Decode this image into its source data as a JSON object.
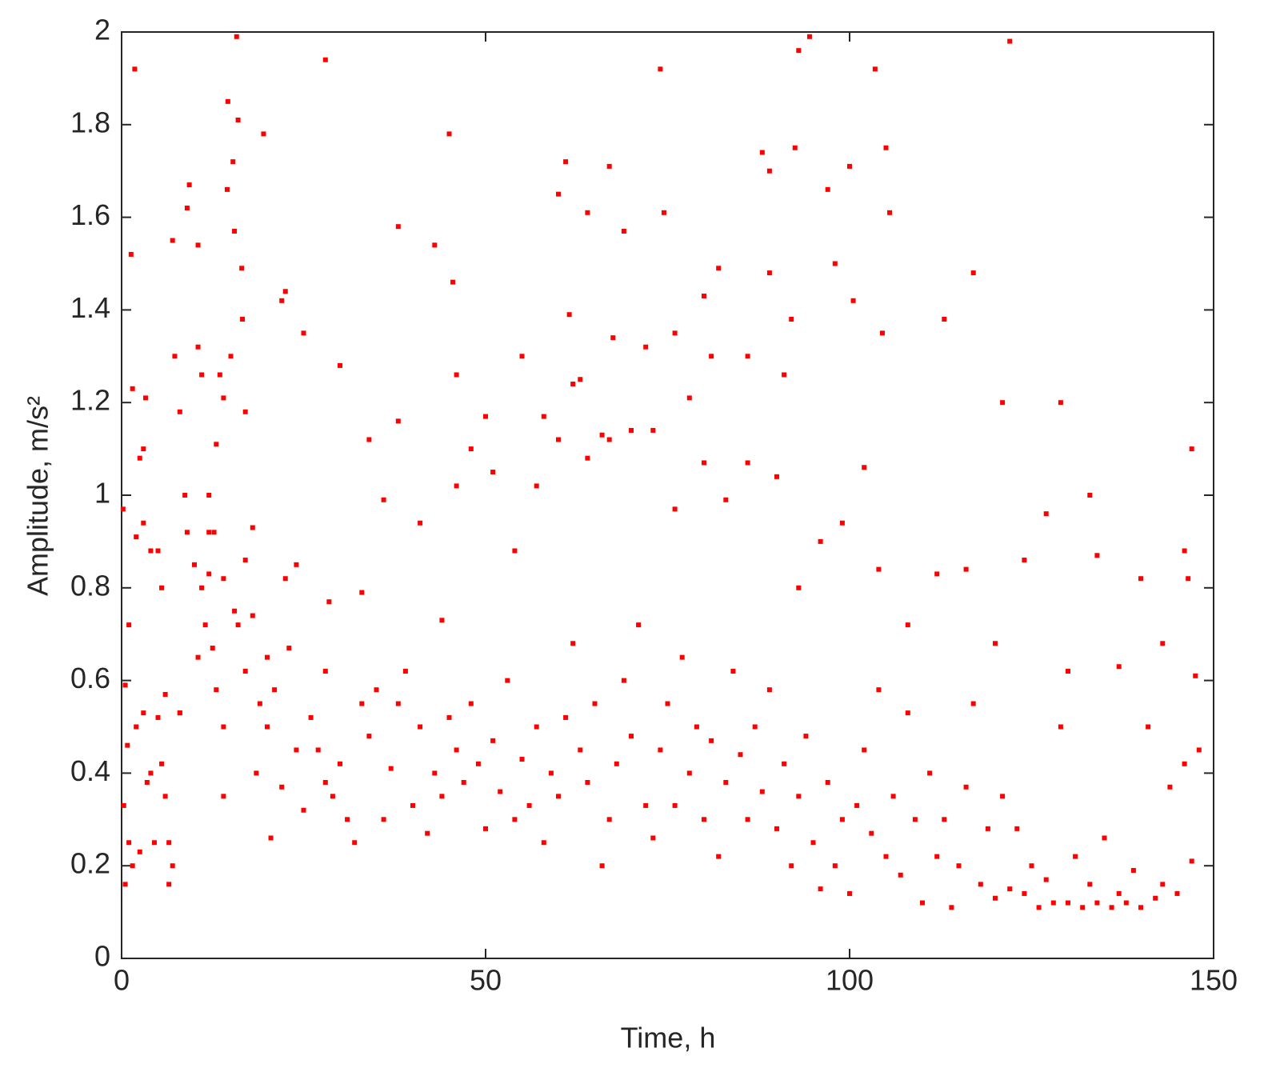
{
  "chart_data": {
    "type": "scatter",
    "color": "#ff0000",
    "xlabel": "Time, h",
    "ylabel": "Amplitude, m/s²",
    "xlim": [
      0,
      150
    ],
    "ylim": [
      0,
      2
    ],
    "xticks": [
      0,
      50,
      100,
      150
    ],
    "yticks": [
      0,
      0.2,
      0.4,
      0.6,
      0.8,
      1,
      1.2,
      1.4,
      1.6,
      1.8,
      2
    ],
    "x": [
      0.2,
      0.5,
      0.8,
      1,
      1.3,
      1.5,
      1.8,
      2,
      2.5,
      3,
      3.3,
      4,
      5,
      5.5,
      7,
      7.3,
      8,
      8.7,
      9,
      9.3,
      10,
      10.5,
      10.5,
      11,
      12,
      12.7,
      13,
      13.5,
      14,
      14.5,
      14.6,
      15,
      15.3,
      15.5,
      15.8,
      16,
      16.5,
      16.6,
      17,
      18,
      19.5,
      22,
      22.5,
      25,
      28,
      30,
      34,
      38,
      43,
      45,
      45.5,
      46,
      50,
      55,
      58,
      60,
      61,
      61.5,
      62,
      63,
      64,
      66,
      67,
      67.5,
      69,
      72,
      74,
      74.5,
      76,
      78,
      80,
      81,
      82,
      86,
      88,
      89,
      89,
      91,
      92,
      92.5,
      93,
      94.5,
      97,
      98,
      100,
      100.5,
      103.5,
      104.5,
      105,
      105.5,
      113,
      117,
      121,
      122,
      129,
      133,
      147,
      0.3,
      0.5,
      1,
      1.5,
      2,
      2.5,
      3,
      3.5,
      4,
      4.5,
      5,
      5.5,
      6,
      6.5,
      6.5,
      7,
      8,
      10.5,
      11,
      11.5,
      12,
      12.5,
      13,
      14,
      14,
      15.5,
      16,
      17,
      18,
      18.5,
      19,
      20,
      20.5,
      21,
      22,
      22.5,
      23,
      24,
      25,
      26,
      27,
      28,
      28.5,
      29,
      30,
      31,
      32,
      33,
      34,
      35,
      36,
      37,
      38,
      39,
      40,
      41,
      42,
      43,
      44,
      45,
      46,
      47,
      48,
      49,
      50,
      51,
      52,
      53,
      54,
      55,
      56,
      57,
      58,
      59,
      60,
      61,
      62,
      63,
      64,
      65,
      66,
      67,
      68,
      69,
      70,
      71,
      72,
      73,
      74,
      75,
      76,
      77,
      78,
      79,
      80,
      81,
      82,
      83,
      84,
      85,
      86,
      87,
      88,
      89,
      90,
      91,
      92,
      93,
      94,
      95,
      96,
      97,
      98,
      99,
      100,
      101,
      102,
      103,
      104,
      105,
      106,
      107,
      108,
      109,
      110,
      111,
      112,
      113,
      114,
      115,
      116,
      117,
      118,
      119,
      120,
      121,
      122,
      123,
      124,
      125,
      126,
      127,
      128,
      129,
      130,
      131,
      132,
      133,
      134,
      135,
      136,
      137,
      138,
      139,
      140,
      141,
      142,
      143,
      144,
      145,
      146,
      147,
      148,
      147.5,
      146.5,
      146,
      143,
      140,
      137,
      134,
      130,
      127,
      124,
      120,
      116,
      112,
      108,
      104,
      102,
      99,
      96,
      93,
      90,
      86,
      83,
      80,
      76,
      73,
      70,
      67,
      64,
      60,
      57,
      54,
      51,
      48,
      46,
      44,
      41,
      38,
      36,
      33,
      28,
      24,
      20,
      17,
      14,
      12,
      9,
      8,
      6,
      3
    ],
    "values": [
      0.97,
      0.59,
      0.46,
      0.72,
      1.52,
      1.23,
      1.92,
      0.91,
      1.08,
      1.1,
      1.21,
      0.88,
      0.88,
      0.8,
      1.55,
      1.3,
      1.18,
      1.0,
      1.62,
      1.67,
      0.85,
      1.54,
      1.32,
      1.26,
      1.0,
      0.92,
      1.11,
      1.26,
      1.21,
      1.66,
      1.85,
      1.3,
      1.72,
      1.57,
      1.99,
      1.81,
      1.49,
      1.38,
      1.18,
      0.93,
      1.78,
      1.42,
      1.44,
      1.35,
      1.94,
      1.28,
      1.12,
      1.58,
      1.54,
      1.78,
      1.46,
      1.26,
      1.17,
      1.3,
      1.17,
      1.65,
      1.72,
      1.39,
      1.24,
      1.25,
      1.61,
      1.13,
      1.71,
      1.34,
      1.57,
      1.32,
      1.92,
      1.61,
      1.35,
      1.21,
      1.43,
      1.3,
      1.49,
      1.3,
      1.74,
      1.7,
      1.48,
      1.26,
      1.38,
      1.75,
      1.96,
      1.99,
      1.66,
      1.5,
      1.71,
      1.42,
      1.92,
      1.35,
      1.75,
      1.61,
      1.38,
      1.48,
      1.2,
      1.98,
      1.2,
      1.0,
      1.1,
      0.33,
      0.16,
      0.25,
      0.2,
      0.5,
      0.23,
      0.53,
      0.38,
      0.4,
      0.25,
      0.52,
      0.42,
      0.35,
      0.25,
      0.16,
      0.2,
      0.53,
      0.65,
      0.8,
      0.72,
      0.83,
      0.67,
      0.58,
      0.5,
      0.35,
      0.75,
      0.72,
      0.62,
      0.74,
      0.4,
      0.55,
      0.5,
      0.26,
      0.58,
      0.37,
      0.82,
      0.67,
      0.45,
      0.32,
      0.52,
      0.45,
      0.38,
      0.77,
      0.35,
      0.42,
      0.3,
      0.25,
      0.55,
      0.48,
      0.58,
      0.3,
      0.41,
      0.55,
      0.62,
      0.33,
      0.5,
      0.27,
      0.4,
      0.35,
      0.52,
      0.45,
      0.38,
      0.55,
      0.42,
      0.28,
      0.47,
      0.36,
      0.6,
      0.3,
      0.43,
      0.33,
      0.5,
      0.25,
      0.4,
      0.35,
      0.52,
      0.68,
      0.45,
      0.38,
      0.55,
      0.2,
      0.3,
      0.42,
      0.6,
      0.48,
      0.72,
      0.33,
      0.26,
      0.45,
      0.55,
      0.33,
      0.65,
      0.4,
      0.5,
      0.3,
      0.47,
      0.22,
      0.38,
      0.62,
      0.44,
      0.3,
      0.5,
      0.36,
      0.58,
      0.28,
      0.42,
      0.2,
      0.35,
      0.48,
      0.25,
      0.15,
      0.38,
      0.2,
      0.3,
      0.14,
      0.33,
      0.45,
      0.27,
      0.58,
      0.22,
      0.35,
      0.18,
      0.53,
      0.3,
      0.12,
      0.4,
      0.22,
      0.3,
      0.11,
      0.2,
      0.37,
      0.55,
      0.16,
      0.28,
      0.13,
      0.35,
      0.15,
      0.28,
      0.14,
      0.2,
      0.11,
      0.17,
      0.12,
      0.5,
      0.12,
      0.22,
      0.11,
      0.16,
      0.12,
      0.26,
      0.11,
      0.14,
      0.12,
      0.19,
      0.11,
      0.5,
      0.13,
      0.16,
      0.37,
      0.14,
      0.42,
      0.21,
      0.45,
      0.61,
      0.82,
      0.88,
      0.68,
      0.82,
      0.63,
      0.87,
      0.62,
      0.96,
      0.86,
      0.68,
      0.84,
      0.83,
      0.72,
      0.84,
      1.06,
      0.94,
      0.9,
      0.8,
      1.04,
      1.07,
      0.99,
      1.07,
      0.97,
      1.14,
      1.14,
      1.12,
      1.08,
      1.12,
      1.02,
      0.88,
      1.05,
      1.1,
      1.02,
      0.73,
      0.94,
      1.16,
      0.99,
      0.79,
      0.62,
      0.85,
      0.65,
      0.86,
      0.82,
      0.92,
      0.92,
      0.53,
      0.57,
      0.94
    ]
  }
}
